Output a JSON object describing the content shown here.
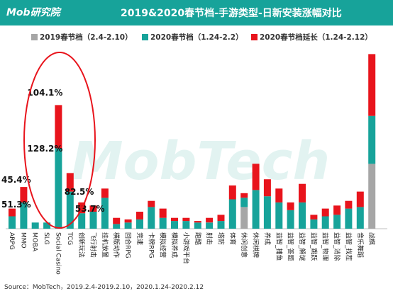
{
  "header": {
    "logo": "Mob研究院",
    "title": "2019&2020春节档-手游类型-日新安装涨幅对比"
  },
  "colors": {
    "header_bg": "#17a39a",
    "series_2019": "#a6a6a6",
    "series_2020": "#17a39a",
    "series_extension": "#e8141c",
    "highlight_ellipse": "#e8141c"
  },
  "watermark": "MobTech",
  "source": "Source：MobTech，2019.2.4-2019.2.10，2020.1.24-2020.2.12",
  "chart_data": {
    "type": "bar",
    "stacked": true,
    "categories": [
      "ARPG",
      "MMO",
      "MOBA",
      "SLG",
      "Social Casino",
      "TCG",
      "创新玩法",
      "飞行射击",
      "挂机放置",
      "横版动作",
      "回合RPG",
      "竞速",
      "卡牌RPG",
      "模拟经营",
      "模拟养成",
      "小游戏平台",
      "跑酷",
      "射击",
      "塔防",
      "体育",
      "休闲创意",
      "休闲棋牌",
      "养成",
      "益智_捕鱼",
      "益智_答题",
      "益智_解谜",
      "益智_跳跃",
      "益智_物理",
      "益智_消除",
      "益智_找茬",
      "音乐舞蹈",
      "战棋"
    ],
    "series": [
      {
        "name": "2019春节档（2.4-2.10）",
        "values": [
          0,
          0,
          0,
          0,
          0,
          0,
          0,
          0,
          0,
          0,
          0,
          0,
          0,
          0,
          0,
          0,
          0,
          0,
          0,
          0,
          14,
          0,
          0,
          0,
          0,
          0,
          0,
          0,
          0,
          0,
          0,
          42
        ]
      },
      {
        "name": "2020春节档（1.24-2.2）",
        "values": [
          8,
          17,
          4,
          4,
          52,
          24,
          10,
          11,
          20,
          3,
          4,
          6,
          14,
          7,
          5,
          5,
          4,
          4,
          5,
          19,
          6,
          25,
          21,
          17,
          12,
          17,
          6,
          8,
          9,
          13,
          14,
          31
        ]
      },
      {
        "name": "2020春节档延长（1.24-2.12）",
        "values": [
          5,
          10,
          0,
          0,
          28,
          12,
          7,
          4,
          6,
          4,
          2,
          5,
          4,
          6,
          2,
          2,
          1,
          3,
          4,
          9,
          3,
          17,
          11,
          9,
          5,
          12,
          3,
          5,
          6,
          5,
          10,
          40
        ]
      }
    ],
    "annotations": [
      "104.1%",
      "128.2%",
      "82.5%",
      "45.4%",
      "51.3%",
      "53.7%"
    ],
    "xlabel": "",
    "ylabel": "",
    "ylim": [
      0,
      115
    ],
    "grid": false,
    "legend_position": "top"
  }
}
